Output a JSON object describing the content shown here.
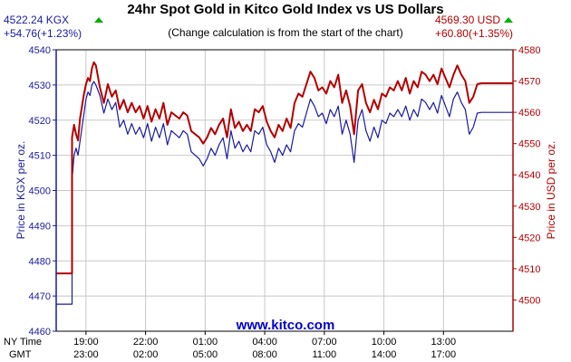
{
  "header": {
    "title": "24hr Spot Gold in Kitco Gold Index vs US Dollars",
    "subtitle": "(Change calculation is from the start of the chart)",
    "kgx_price": "4522.24 KGX",
    "kgx_change": "+54.76(+1.23%)",
    "usd_price": "4569.30 USD",
    "usd_change": "+60.80(+1.35%)",
    "up_color": "#00b000"
  },
  "footer": {
    "brand": "www.kitco.com",
    "ny_time_label": "NY Time",
    "gmt_label": "GMT"
  },
  "colors": {
    "kgx": "#1a1aa0",
    "usd": "#b30000",
    "grid": "#c8c8c8",
    "plot_bg": "#ffffff"
  },
  "chart_data": {
    "type": "line",
    "title": "24hr Spot Gold in Kitco Gold Index vs US Dollars",
    "subtitle": "(Change calculation is from the start of the chart)",
    "xlabel": "",
    "ylabel_left": "Price in KGX per oz.",
    "ylabel_right": "Price in USD per oz.",
    "x_range_hours": [
      16.6,
      23.0
    ],
    "ylim_left": [
      4460,
      4540
    ],
    "ylim_right": [
      4490,
      4580
    ],
    "yticks_left": [
      4460,
      4470,
      4480,
      4490,
      4500,
      4510,
      4520,
      4530,
      4540
    ],
    "yticks_right": [
      4500,
      4510,
      4520,
      4530,
      4540,
      4550,
      4560,
      4570,
      4580
    ],
    "xticks": [
      {
        "ny": "19:00",
        "gmt": "23:00",
        "x": 1.5
      },
      {
        "ny": "22:00",
        "gmt": "02:00",
        "x": 4.5
      },
      {
        "ny": "01:00",
        "gmt": "05:00",
        "x": 7.5
      },
      {
        "ny": "04:00",
        "gmt": "08:00",
        "x": 10.5
      },
      {
        "ny": "07:00",
        "gmt": "11:00",
        "x": 13.5
      },
      {
        "ny": "10:00",
        "gmt": "14:00",
        "x": 16.5
      },
      {
        "ny": "13:00",
        "gmt": "17:00",
        "x": 19.5
      }
    ],
    "grid": true,
    "series": [
      {
        "name": "KGX",
        "axis": "left",
        "x": [
          0.0,
          0.8,
          0.8,
          0.9,
          1.0,
          1.1,
          1.2,
          1.3,
          1.4,
          1.5,
          1.6,
          1.7,
          1.8,
          1.9,
          2.0,
          2.2,
          2.4,
          2.6,
          2.8,
          3.0,
          3.2,
          3.4,
          3.6,
          3.8,
          4.0,
          4.2,
          4.4,
          4.6,
          4.8,
          5.0,
          5.2,
          5.4,
          5.6,
          5.8,
          6.0,
          6.2,
          6.4,
          6.6,
          6.8,
          7.0,
          7.2,
          7.4,
          7.6,
          7.8,
          8.0,
          8.2,
          8.4,
          8.6,
          8.8,
          9.0,
          9.2,
          9.4,
          9.6,
          9.8,
          10.0,
          10.2,
          10.4,
          10.6,
          10.8,
          11.0,
          11.2,
          11.4,
          11.6,
          11.8,
          12.0,
          12.2,
          12.4,
          12.6,
          12.8,
          13.0,
          13.2,
          13.4,
          13.6,
          13.8,
          14.0,
          14.2,
          14.4,
          14.6,
          14.8,
          15.0,
          15.2,
          15.4,
          15.6,
          15.8,
          16.0,
          16.2,
          16.4,
          16.6,
          16.8,
          17.0,
          17.2,
          17.4,
          17.6,
          17.8,
          18.0,
          18.2,
          18.4,
          18.6,
          18.8,
          19.0,
          19.2,
          19.4,
          19.6,
          19.8,
          20.0,
          20.2,
          20.4,
          20.6,
          20.8,
          21.0,
          21.2,
          21.4,
          21.6,
          21.8,
          22.0,
          22.2,
          22.4,
          22.6,
          22.8,
          23.0
        ],
        "values": [
          4467.7,
          4467.7,
          4503,
          4510,
          4512,
          4510,
          4514,
          4518,
          4522,
          4526,
          4528,
          4527,
          4530,
          4531,
          4530,
          4527,
          4522,
          4526,
          4523,
          4525,
          4518,
          4520,
          4516,
          4519,
          4516,
          4518,
          4515,
          4519,
          4514,
          4518,
          4515,
          4519,
          4513,
          4517,
          4516,
          4515,
          4517,
          4516,
          4511,
          4510,
          4509,
          4507,
          4509,
          4512,
          4510,
          4513,
          4515,
          4509,
          4517,
          4512,
          4514,
          4511,
          4513,
          4511,
          4517,
          4516,
          4518,
          4513,
          4511,
          4508,
          4512,
          4510,
          4513,
          4511,
          4517,
          4519,
          4518,
          4522,
          4526,
          4524,
          4521,
          4522,
          4519,
          4523,
          4521,
          4524,
          4516,
          4520,
          4516,
          4508,
          4520,
          4523,
          4517,
          4514,
          4518,
          4515,
          4520,
          4519,
          4522,
          4521,
          4523,
          4521,
          4524,
          4520,
          4523,
          4521,
          4526,
          4525,
          4523,
          4525,
          4522,
          4527,
          4524,
          4521,
          4526,
          4528,
          4525,
          4523,
          4516,
          4518,
          4522,
          4522.2,
          4522.2,
          4522.2,
          4522.2,
          4522.2,
          4522.2,
          4522.2,
          4522.2,
          4522.2
        ]
      },
      {
        "name": "USD",
        "axis": "right",
        "x": [
          0.0,
          0.8,
          0.8,
          0.9,
          1.0,
          1.1,
          1.2,
          1.3,
          1.4,
          1.5,
          1.6,
          1.7,
          1.8,
          1.9,
          2.0,
          2.2,
          2.4,
          2.6,
          2.8,
          3.0,
          3.2,
          3.4,
          3.6,
          3.8,
          4.0,
          4.2,
          4.4,
          4.6,
          4.8,
          5.0,
          5.2,
          5.4,
          5.6,
          5.8,
          6.0,
          6.2,
          6.4,
          6.6,
          6.8,
          7.0,
          7.2,
          7.4,
          7.6,
          7.8,
          8.0,
          8.2,
          8.4,
          8.6,
          8.8,
          9.0,
          9.2,
          9.4,
          9.6,
          9.8,
          10.0,
          10.2,
          10.4,
          10.6,
          10.8,
          11.0,
          11.2,
          11.4,
          11.6,
          11.8,
          12.0,
          12.2,
          12.4,
          12.6,
          12.8,
          13.0,
          13.2,
          13.4,
          13.6,
          13.8,
          14.0,
          14.2,
          14.4,
          14.6,
          14.8,
          15.0,
          15.2,
          15.4,
          15.6,
          15.8,
          16.0,
          16.2,
          16.4,
          16.6,
          16.8,
          17.0,
          17.2,
          17.4,
          17.6,
          17.8,
          18.0,
          18.2,
          18.4,
          18.6,
          18.8,
          19.0,
          19.2,
          19.4,
          19.6,
          19.8,
          20.0,
          20.2,
          20.4,
          20.6,
          20.8,
          21.0,
          21.2,
          21.4,
          21.6,
          21.8,
          22.0,
          22.2,
          22.4,
          22.6,
          22.8,
          23.0
        ],
        "values": [
          4508.5,
          4508.5,
          4552,
          4556,
          4553,
          4551,
          4558,
          4562,
          4566,
          4569,
          4571,
          4570,
          4574,
          4576,
          4575,
          4568,
          4563,
          4569,
          4565,
          4567,
          4561,
          4564,
          4560,
          4563,
          4560,
          4562,
          4558,
          4562,
          4557,
          4561,
          4558,
          4563,
          4556,
          4560,
          4559,
          4558,
          4560,
          4559,
          4554,
          4553,
          4552,
          4550,
          4552,
          4555,
          4553,
          4556,
          4558,
          4552,
          4561,
          4555,
          4557,
          4554,
          4556,
          4554,
          4561,
          4560,
          4562,
          4557,
          4554,
          4552,
          4556,
          4554,
          4558,
          4555,
          4563,
          4566,
          4565,
          4569,
          4573,
          4571,
          4567,
          4568,
          4566,
          4570,
          4568,
          4572,
          4563,
          4567,
          4562,
          4553,
          4567,
          4569,
          4563,
          4560,
          4564,
          4561,
          4566,
          4565,
          4568,
          4567,
          4570,
          4567,
          4571,
          4566,
          4570,
          4568,
          4573,
          4572,
          4570,
          4572,
          4569,
          4574,
          4571,
          4568,
          4572,
          4575,
          4572,
          4570,
          4563,
          4565,
          4569,
          4569.3,
          4569.3,
          4569.3,
          4569.3,
          4569.3,
          4569.3,
          4569.3,
          4569.3,
          4569.3
        ]
      }
    ]
  }
}
